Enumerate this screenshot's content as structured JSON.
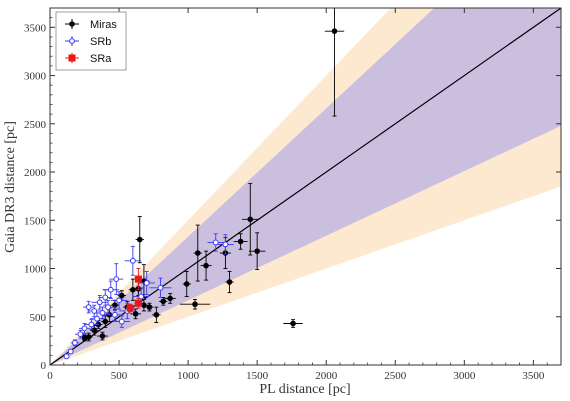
{
  "chart_data": {
    "type": "scatter",
    "xlabel": "PL distance [pc]",
    "ylabel": "Gaia DR3 distance [pc]",
    "xlim": [
      0,
      3700
    ],
    "ylim": [
      0,
      3700
    ],
    "xticks": [
      0,
      500,
      1000,
      1500,
      2000,
      2500,
      3000,
      3500
    ],
    "yticks": [
      0,
      500,
      1000,
      1500,
      2000,
      2500,
      3000,
      3500
    ],
    "grid": false,
    "legend_position": "top-left",
    "colors": {
      "Miras": "#000000",
      "SRb": "#3a3af0",
      "SRa": "#e81818",
      "one_to_one": "#000000",
      "inner_band": "#cbbfe0",
      "outer_band": "#fde9cf"
    },
    "reference_line": {
      "slope": 1.0
    },
    "bands": [
      {
        "slope_low": 0.5,
        "slope_high": 1.5
      },
      {
        "slope_low": 0.67,
        "slope_high": 1.33
      }
    ],
    "series": [
      {
        "name": "Miras",
        "marker": "circle",
        "points": [
          {
            "x": 2060,
            "y": 3460,
            "xerr": 70,
            "yerr": 880
          },
          {
            "x": 1760,
            "y": 430,
            "xerr": 70,
            "yerr": 40
          },
          {
            "x": 1500,
            "y": 1180,
            "xerr": 60,
            "yerr": 190
          },
          {
            "x": 1450,
            "y": 1510,
            "xerr": 60,
            "yerr": 370
          },
          {
            "x": 1380,
            "y": 1280,
            "xerr": 50,
            "yerr": 80
          },
          {
            "x": 1300,
            "y": 860,
            "xerr": 30,
            "yerr": 110
          },
          {
            "x": 1270,
            "y": 1160,
            "xerr": 40,
            "yerr": 160
          },
          {
            "x": 1130,
            "y": 1030,
            "xerr": 40,
            "yerr": 150
          },
          {
            "x": 1070,
            "y": 1160,
            "xerr": 30,
            "yerr": 290
          },
          {
            "x": 1050,
            "y": 630,
            "xerr": 110,
            "yerr": 50
          },
          {
            "x": 990,
            "y": 840,
            "xerr": 30,
            "yerr": 130
          },
          {
            "x": 870,
            "y": 690,
            "xerr": 40,
            "yerr": 50
          },
          {
            "x": 820,
            "y": 660,
            "xerr": 30,
            "yerr": 40
          },
          {
            "x": 770,
            "y": 520,
            "xerr": 30,
            "yerr": 80
          },
          {
            "x": 720,
            "y": 600,
            "xerr": 30,
            "yerr": 40
          },
          {
            "x": 680,
            "y": 870,
            "xerr": 40,
            "yerr": 170
          },
          {
            "x": 650,
            "y": 1300,
            "xerr": 30,
            "yerr": 240
          },
          {
            "x": 640,
            "y": 790,
            "xerr": 30,
            "yerr": 70
          },
          {
            "x": 600,
            "y": 780,
            "xerr": 30,
            "yerr": 110
          },
          {
            "x": 560,
            "y": 600,
            "xerr": 30,
            "yerr": 60
          },
          {
            "x": 520,
            "y": 720,
            "xerr": 30,
            "yerr": 50
          },
          {
            "x": 470,
            "y": 620,
            "xerr": 30,
            "yerr": 50
          },
          {
            "x": 430,
            "y": 520,
            "xerr": 30,
            "yerr": 70
          },
          {
            "x": 400,
            "y": 450,
            "xerr": 30,
            "yerr": 60
          },
          {
            "x": 380,
            "y": 300,
            "xerr": 40,
            "yerr": 40
          },
          {
            "x": 350,
            "y": 420,
            "xerr": 30,
            "yerr": 40
          },
          {
            "x": 320,
            "y": 360,
            "xerr": 30,
            "yerr": 50
          },
          {
            "x": 280,
            "y": 290,
            "xerr": 30,
            "yerr": 40
          },
          {
            "x": 250,
            "y": 280,
            "xerr": 30,
            "yerr": 30
          },
          {
            "x": 620,
            "y": 530,
            "xerr": 40,
            "yerr": 50
          },
          {
            "x": 680,
            "y": 620,
            "xerr": 30,
            "yerr": 60
          }
        ]
      },
      {
        "name": "SRb",
        "marker": "open-circle",
        "points": [
          {
            "x": 1270,
            "y": 1250,
            "xerr": 60,
            "yerr": 100
          },
          {
            "x": 1200,
            "y": 1270,
            "xerr": 60,
            "yerr": 90
          },
          {
            "x": 800,
            "y": 800,
            "xerr": 80,
            "yerr": 100
          },
          {
            "x": 700,
            "y": 850,
            "xerr": 60,
            "yerr": 120
          },
          {
            "x": 660,
            "y": 710,
            "xerr": 60,
            "yerr": 90
          },
          {
            "x": 600,
            "y": 1080,
            "xerr": 60,
            "yerr": 150
          },
          {
            "x": 560,
            "y": 560,
            "xerr": 60,
            "yerr": 80
          },
          {
            "x": 520,
            "y": 450,
            "xerr": 60,
            "yerr": 60
          },
          {
            "x": 500,
            "y": 670,
            "xerr": 60,
            "yerr": 90
          },
          {
            "x": 480,
            "y": 890,
            "xerr": 50,
            "yerr": 160
          },
          {
            "x": 470,
            "y": 520,
            "xerr": 60,
            "yerr": 60
          },
          {
            "x": 440,
            "y": 780,
            "xerr": 60,
            "yerr": 90
          },
          {
            "x": 420,
            "y": 600,
            "xerr": 60,
            "yerr": 70
          },
          {
            "x": 400,
            "y": 700,
            "xerr": 50,
            "yerr": 80
          },
          {
            "x": 380,
            "y": 540,
            "xerr": 50,
            "yerr": 60
          },
          {
            "x": 360,
            "y": 650,
            "xerr": 60,
            "yerr": 70
          },
          {
            "x": 340,
            "y": 480,
            "xerr": 50,
            "yerr": 60
          },
          {
            "x": 320,
            "y": 560,
            "xerr": 50,
            "yerr": 60
          },
          {
            "x": 300,
            "y": 420,
            "xerr": 50,
            "yerr": 50
          },
          {
            "x": 280,
            "y": 600,
            "xerr": 40,
            "yerr": 60
          },
          {
            "x": 250,
            "y": 380,
            "xerr": 40,
            "yerr": 50
          },
          {
            "x": 220,
            "y": 320,
            "xerr": 40,
            "yerr": 40
          },
          {
            "x": 180,
            "y": 230,
            "xerr": 30,
            "yerr": 30
          },
          {
            "x": 150,
            "y": 140,
            "xerr": 20,
            "yerr": 20
          },
          {
            "x": 120,
            "y": 90,
            "xerr": 20,
            "yerr": 20
          }
        ]
      },
      {
        "name": "SRa",
        "marker": "square",
        "points": [
          {
            "x": 640,
            "y": 890,
            "xerr": 30,
            "yerr": 110
          },
          {
            "x": 640,
            "y": 640,
            "xerr": 30,
            "yerr": 50
          },
          {
            "x": 580,
            "y": 590,
            "xerr": 30,
            "yerr": 40
          }
        ]
      }
    ]
  }
}
